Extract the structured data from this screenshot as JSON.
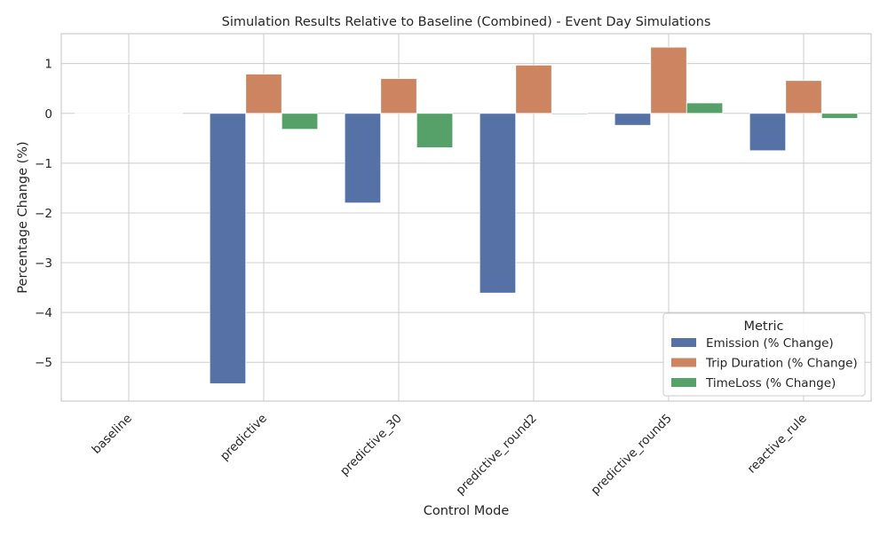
{
  "chart_data": {
    "type": "bar",
    "title": "Simulation Results Relative to Baseline (Combined) - Event Day Simulations",
    "xlabel": "Control Mode",
    "ylabel": "Percentage Change (%)",
    "categories": [
      "baseline",
      "predictive",
      "predictive_30",
      "predictive_round2",
      "predictive_round5",
      "reactive_rule"
    ],
    "series": [
      {
        "name": "Emission (% Change)",
        "color": "#5571a5",
        "values": [
          0.0,
          -5.43,
          -1.8,
          -3.61,
          -0.24,
          -0.75
        ]
      },
      {
        "name": "Trip Duration (% Change)",
        "color": "#cc8560",
        "values": [
          0.0,
          0.79,
          0.7,
          0.97,
          1.33,
          0.66
        ]
      },
      {
        "name": "TimeLoss (% Change)",
        "color": "#56a06a",
        "values": [
          0.0,
          -0.32,
          -0.69,
          -0.02,
          0.21,
          -0.1
        ]
      }
    ],
    "ylim": [
      -5.78,
      1.6
    ],
    "yticks": [
      1,
      0,
      -1,
      -2,
      -3,
      -4,
      -5
    ],
    "ytick_labels": [
      "1",
      "0",
      "−1",
      "−2",
      "−3",
      "−4",
      "−5"
    ],
    "grid": true,
    "legend": {
      "title": "Metric",
      "placement": "lower-right"
    }
  }
}
